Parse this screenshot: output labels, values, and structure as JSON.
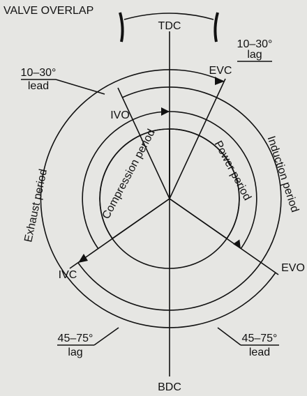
{
  "title": "VALVE OVERLAP",
  "points": {
    "tdc": "TDC",
    "bdc": "BDC",
    "evc": "EVC",
    "ivo": "IVO",
    "ivc": "IVC",
    "evo": "EVO"
  },
  "timings": {
    "evc": {
      "range": "10–30°",
      "direction": "lag"
    },
    "ivo": {
      "range": "10–30°",
      "direction": "lead"
    },
    "ivc": {
      "range": "45–75°",
      "direction": "lag"
    },
    "evo": {
      "range": "45–75°",
      "direction": "lead"
    }
  },
  "periods": {
    "compression": "Compression period",
    "power": "Power period",
    "induction": "Induction period",
    "exhaust": "Exhaust period"
  }
}
